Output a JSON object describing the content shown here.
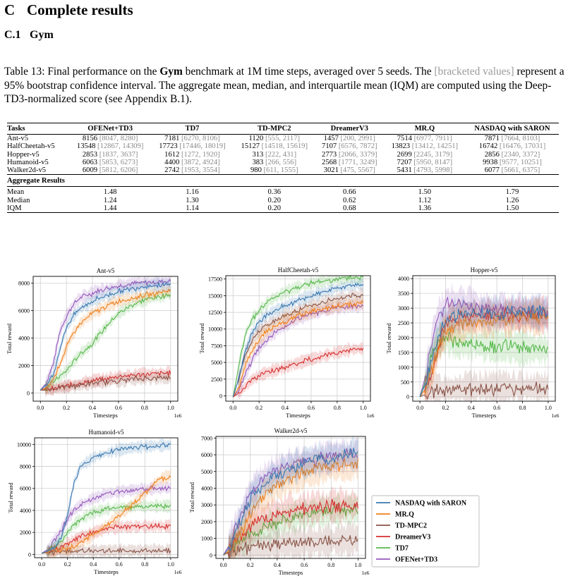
{
  "section": {
    "number": "C",
    "title": "Complete results"
  },
  "subsection": {
    "number": "C.1",
    "title": "Gym"
  },
  "caption": {
    "part1": "Table 13: Final performance on the ",
    "bold": "Gym",
    "part2": " benchmark at 1M time steps, averaged over 5 seeds. The ",
    "gray": "[bracketed values]",
    "part3": " represent a 95% bootstrap confidence interval. The aggregate mean, median, and interquartile mean (IQM) are computed using the Deep-TD3-normalized score (see Appendix B.1)."
  },
  "table": {
    "headers": [
      "Tasks",
      "OFENet+TD3",
      "TD7",
      "TD-MPC2",
      "DreamerV3",
      "MR.Q",
      "NASDAQ with SARON"
    ],
    "rows": [
      {
        "task": "Ant-v5",
        "cells": [
          [
            "8156",
            "[8047, 8280]"
          ],
          [
            "7181",
            "[6270, 8106]"
          ],
          [
            "1120",
            "[555, 2117]"
          ],
          [
            "1457",
            "[200, 2991]"
          ],
          [
            "7514",
            "[6977, 7911]"
          ],
          [
            "7871",
            "[7664, 8103]"
          ]
        ]
      },
      {
        "task": "HalfCheetah-v5",
        "cells": [
          [
            "13548",
            "[12867, 14309]"
          ],
          [
            "17723",
            "[17446, 18019]"
          ],
          [
            "15127",
            "[14518, 15619]"
          ],
          [
            "7107",
            "[6576, 7872]"
          ],
          [
            "13823",
            "[13412, 14251]"
          ],
          [
            "16742",
            "[16476, 17031]"
          ]
        ]
      },
      {
        "task": "Hopper-v5",
        "cells": [
          [
            "2853",
            "[1837, 3637]"
          ],
          [
            "1612",
            "[1272, 1920]"
          ],
          [
            "313",
            "[222, 431]"
          ],
          [
            "2773",
            "[2066, 3379]"
          ],
          [
            "2699",
            "[2245, 3179]"
          ],
          [
            "2856",
            "[2340, 3372]"
          ]
        ]
      },
      {
        "task": "Humanoid-v5",
        "cells": [
          [
            "6063",
            "[5853, 6273]"
          ],
          [
            "4400",
            "[3872, 4924]"
          ],
          [
            "383",
            "[266, 556]"
          ],
          [
            "2568",
            "[1771, 3249]"
          ],
          [
            "7207",
            "[5950, 8147]"
          ],
          [
            "9938",
            "[9577, 10251]"
          ]
        ]
      },
      {
        "task": "Walker2d-v5",
        "cells": [
          [
            "6009",
            "[5812, 6206]"
          ],
          [
            "2742",
            "[1953, 3554]"
          ],
          [
            "980",
            "[611, 1555]"
          ],
          [
            "3021",
            "[475, 5567]"
          ],
          [
            "5431",
            "[4793, 5998]"
          ],
          [
            "6077",
            "[5661, 6375]"
          ]
        ]
      }
    ],
    "aggregate_title": "Aggregate Results",
    "aggregate": [
      {
        "label": "Mean",
        "values": [
          "1.48",
          "1.16",
          "0.36",
          "0.66",
          "1.50",
          "1.79"
        ]
      },
      {
        "label": "Median",
        "values": [
          "1.24",
          "1.30",
          "0.20",
          "0.62",
          "1.12",
          "1.26"
        ]
      },
      {
        "label": "IQM",
        "values": [
          "1.44",
          "1.14",
          "0.20",
          "0.68",
          "1.36",
          "1.50"
        ]
      }
    ]
  },
  "legend": [
    {
      "name": "NASDAQ with SARON",
      "color": "#3a78b0"
    },
    {
      "name": "MR.Q",
      "color": "#f07f1a"
    },
    {
      "name": "TD-MPC2",
      "color": "#8a5447"
    },
    {
      "name": "DreamerV3",
      "color": "#d62e2e"
    },
    {
      "name": "TD7",
      "color": "#55b74a"
    },
    {
      "name": "OFENet+TD3",
      "color": "#9457bb"
    }
  ],
  "chart_data": [
    {
      "type": "line",
      "title": "Ant-v5",
      "xlabel": "Timesteps",
      "ylabel": "Total reward",
      "xoffset": "1e6",
      "xlim": [
        0,
        1.0
      ],
      "ylim": [
        -600,
        8500
      ],
      "xticks": [
        "0.0",
        "0.2",
        "0.4",
        "0.6",
        "0.8",
        "1.0"
      ],
      "yticks": [
        0,
        2000,
        4000,
        6000,
        8000
      ],
      "x": [
        0,
        0.05,
        0.1,
        0.15,
        0.2,
        0.25,
        0.3,
        0.4,
        0.5,
        0.6,
        0.7,
        0.8,
        0.9,
        1.0
      ],
      "series": [
        {
          "name": "NASDAQ with SARON",
          "values": [
            200,
            600,
            1400,
            3200,
            4800,
            5600,
            6100,
            6700,
            7100,
            7400,
            7600,
            7800,
            7850,
            7870
          ]
        },
        {
          "name": "MR.Q",
          "values": [
            200,
            400,
            1000,
            2100,
            3300,
            4300,
            5000,
            5800,
            6300,
            6700,
            6900,
            7100,
            7300,
            7500
          ]
        },
        {
          "name": "TD-MPC2",
          "values": [
            200,
            200,
            300,
            400,
            450,
            500,
            550,
            700,
            800,
            900,
            1000,
            1050,
            1100,
            1120
          ]
        },
        {
          "name": "DreamerV3",
          "values": [
            200,
            250,
            300,
            400,
            500,
            600,
            700,
            900,
            1000,
            1200,
            1300,
            1350,
            1400,
            1450
          ]
        },
        {
          "name": "TD7",
          "values": [
            200,
            400,
            800,
            1200,
            1600,
            2200,
            2800,
            3600,
            4800,
            5800,
            6400,
            6800,
            7000,
            7180
          ]
        },
        {
          "name": "OFENet+TD3",
          "values": [
            200,
            800,
            2200,
            4500,
            5600,
            6400,
            6900,
            7300,
            7600,
            7800,
            7950,
            8050,
            8100,
            8150
          ]
        }
      ]
    },
    {
      "type": "line",
      "title": "HalfCheetah-v5",
      "xlabel": "Timesteps",
      "ylabel": "Total reward",
      "xoffset": "1e6",
      "xlim": [
        0,
        1.0
      ],
      "ylim": [
        -800,
        18000
      ],
      "xticks": [
        "0.0",
        "0.2",
        "0.4",
        "0.6",
        "0.8",
        "1.0"
      ],
      "yticks": [
        0,
        2500,
        5000,
        7500,
        10000,
        12500,
        15000,
        17500
      ],
      "x": [
        0,
        0.05,
        0.1,
        0.15,
        0.2,
        0.25,
        0.3,
        0.4,
        0.5,
        0.6,
        0.7,
        0.8,
        0.9,
        1.0
      ],
      "series": [
        {
          "name": "NASDAQ with SARON",
          "values": [
            -200,
            3000,
            7000,
            9500,
            11000,
            12000,
            12500,
            13500,
            14300,
            15000,
            15600,
            16100,
            16500,
            16740
          ]
        },
        {
          "name": "MR.Q",
          "values": [
            -200,
            1500,
            5000,
            7000,
            8500,
            9500,
            10200,
            11200,
            12000,
            12600,
            13000,
            13400,
            13700,
            13820
          ]
        },
        {
          "name": "TD-MPC2",
          "values": [
            -200,
            3000,
            6500,
            8500,
            9700,
            10500,
            11000,
            12000,
            12800,
            13500,
            14000,
            14500,
            14900,
            15130
          ]
        },
        {
          "name": "DreamerV3",
          "values": [
            -200,
            500,
            1500,
            2500,
            3000,
            3400,
            3700,
            4300,
            4900,
            5500,
            6000,
            6500,
            6900,
            7110
          ]
        },
        {
          "name": "TD7",
          "values": [
            -200,
            5000,
            9500,
            11500,
            12700,
            13700,
            14500,
            15500,
            16300,
            16800,
            17200,
            17450,
            17650,
            17720
          ]
        },
        {
          "name": "OFENet+TD3",
          "values": [
            -200,
            1000,
            3500,
            5500,
            7200,
            8300,
            9200,
            10500,
            11500,
            12200,
            12800,
            13200,
            13400,
            13550
          ]
        }
      ]
    },
    {
      "type": "line",
      "title": "Hopper-v5",
      "xlabel": "Timesteps",
      "ylabel": "Total reward",
      "xoffset": "1e6",
      "xlim": [
        0,
        1.0
      ],
      "ylim": [
        -150,
        4100
      ],
      "xticks": [
        "0.0",
        "0.2",
        "0.4",
        "0.6",
        "0.8",
        "1.0"
      ],
      "yticks": [
        0,
        500,
        1000,
        1500,
        2000,
        2500,
        3000,
        3500,
        4000
      ],
      "x": [
        0,
        0.05,
        0.1,
        0.15,
        0.2,
        0.25,
        0.3,
        0.4,
        0.5,
        0.6,
        0.7,
        0.8,
        0.9,
        1.0
      ],
      "series": [
        {
          "name": "NASDAQ with SARON",
          "values": [
            0,
            500,
            1400,
            2200,
            2600,
            2700,
            2800,
            2800,
            2850,
            2800,
            2850,
            2900,
            2850,
            2860
          ]
        },
        {
          "name": "MR.Q",
          "values": [
            0,
            300,
            1000,
            1800,
            2200,
            2400,
            2400,
            2500,
            2500,
            2600,
            2600,
            2650,
            2700,
            2700
          ]
        },
        {
          "name": "TD-MPC2",
          "values": [
            0,
            100,
            200,
            220,
            240,
            250,
            260,
            270,
            280,
            290,
            300,
            300,
            310,
            313
          ]
        },
        {
          "name": "DreamerV3",
          "values": [
            0,
            300,
            900,
            1800,
            2400,
            2600,
            2700,
            2700,
            2750,
            2750,
            2780,
            2770,
            2770,
            2773
          ]
        },
        {
          "name": "TD7",
          "values": [
            0,
            600,
            1500,
            1900,
            2000,
            1900,
            1800,
            1800,
            1750,
            1700,
            1700,
            1650,
            1620,
            1612
          ]
        },
        {
          "name": "OFENet+TD3",
          "values": [
            0,
            800,
            2000,
            2800,
            3100,
            3200,
            3200,
            3100,
            3000,
            2950,
            2900,
            2900,
            2870,
            2853
          ]
        }
      ]
    },
    {
      "type": "line",
      "title": "Humanoid-v5",
      "xlabel": "Timesteps",
      "ylabel": "Total reward",
      "xoffset": "1e6",
      "xlim": [
        0,
        1.0
      ],
      "ylim": [
        -300,
        10600
      ],
      "xticks": [
        "0.0",
        "0.2",
        "0.4",
        "0.6",
        "0.8",
        "1.0"
      ],
      "yticks": [
        0,
        2000,
        4000,
        6000,
        8000,
        10000
      ],
      "x": [
        0,
        0.05,
        0.1,
        0.15,
        0.2,
        0.25,
        0.3,
        0.4,
        0.5,
        0.6,
        0.7,
        0.8,
        0.9,
        1.0
      ],
      "series": [
        {
          "name": "NASDAQ with SARON",
          "values": [
            100,
            300,
            700,
            1500,
            3500,
            6500,
            8000,
            8800,
            9200,
            9500,
            9700,
            9800,
            9900,
            9940
          ]
        },
        {
          "name": "MR.Q",
          "values": [
            100,
            200,
            300,
            400,
            500,
            700,
            1000,
            1800,
            2600,
            3500,
            4500,
            5500,
            6700,
            7200
          ]
        },
        {
          "name": "TD-MPC2",
          "values": [
            100,
            150,
            200,
            220,
            250,
            270,
            300,
            320,
            340,
            350,
            360,
            370,
            380,
            383
          ]
        },
        {
          "name": "DreamerV3",
          "values": [
            100,
            200,
            400,
            700,
            1000,
            1300,
            1600,
            2000,
            2300,
            2500,
            2500,
            2550,
            2560,
            2568
          ]
        },
        {
          "name": "TD7",
          "values": [
            100,
            300,
            700,
            1200,
            2000,
            2700,
            3200,
            3800,
            4100,
            4300,
            4350,
            4380,
            4400,
            4400
          ]
        },
        {
          "name": "OFENet+TD3",
          "values": [
            100,
            500,
            1200,
            2200,
            3200,
            4000,
            4500,
            5100,
            5500,
            5700,
            5850,
            5950,
            6000,
            6063
          ]
        }
      ]
    },
    {
      "type": "line",
      "title": "Walker2d-v5",
      "xlabel": "Timesteps",
      "ylabel": "Total reward",
      "xoffset": "1e6",
      "xlim": [
        0,
        1.0
      ],
      "ylim": [
        -200,
        7100
      ],
      "xticks": [
        "0.0",
        "0.2",
        "0.4",
        "0.6",
        "0.8",
        "1.0"
      ],
      "yticks": [
        0,
        1000,
        2000,
        3000,
        4000,
        5000,
        6000,
        7000
      ],
      "x": [
        0,
        0.05,
        0.1,
        0.15,
        0.2,
        0.25,
        0.3,
        0.4,
        0.5,
        0.6,
        0.7,
        0.8,
        0.9,
        1.0
      ],
      "series": [
        {
          "name": "NASDAQ with SARON",
          "values": [
            0,
            500,
            1500,
            2500,
            3300,
            3800,
            4200,
            4800,
            5200,
            5500,
            5700,
            5850,
            6000,
            6077
          ]
        },
        {
          "name": "MR.Q",
          "values": [
            0,
            300,
            1000,
            1800,
            2500,
            3100,
            3500,
            4200,
            4600,
            4900,
            5100,
            5250,
            5350,
            5431
          ]
        },
        {
          "name": "TD-MPC2",
          "values": [
            0,
            200,
            300,
            350,
            400,
            450,
            500,
            600,
            700,
            750,
            800,
            850,
            900,
            980
          ]
        },
        {
          "name": "DreamerV3",
          "values": [
            0,
            300,
            800,
            1300,
            1700,
            2000,
            2200,
            2500,
            2700,
            2800,
            2900,
            2950,
            3000,
            3021
          ]
        },
        {
          "name": "TD7",
          "values": [
            0,
            300,
            700,
            1000,
            1200,
            1400,
            1600,
            1900,
            2200,
            2400,
            2550,
            2650,
            2700,
            2742
          ]
        },
        {
          "name": "OFENet+TD3",
          "values": [
            0,
            700,
            1800,
            2800,
            3600,
            4200,
            4600,
            5100,
            5400,
            5600,
            5750,
            5850,
            5950,
            6009
          ]
        }
      ]
    }
  ]
}
